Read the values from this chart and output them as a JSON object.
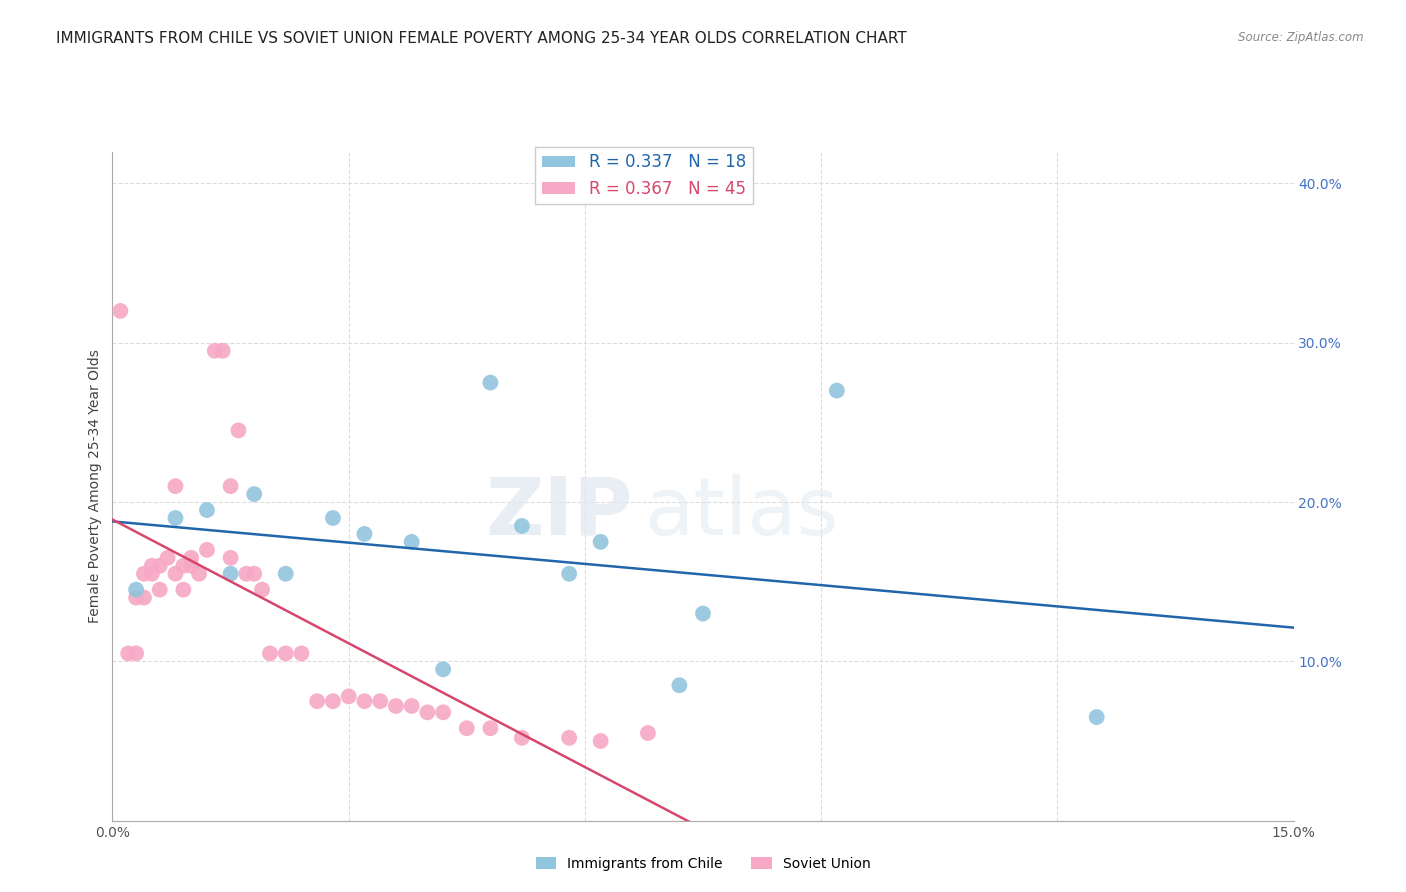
{
  "title": "IMMIGRANTS FROM CHILE VS SOVIET UNION FEMALE POVERTY AMONG 25-34 YEAR OLDS CORRELATION CHART",
  "source": "Source: ZipAtlas.com",
  "ylabel": "Female Poverty Among 25-34 Year Olds",
  "xlim": [
    0.0,
    0.15
  ],
  "ylim": [
    0.0,
    0.42
  ],
  "legend_entries": [
    {
      "label": "R = 0.337   N = 18",
      "color": "#6baed6"
    },
    {
      "label": "R = 0.367   N = 45",
      "color": "#f788a8"
    }
  ],
  "bottom_legend": [
    "Immigrants from Chile",
    "Soviet Union"
  ],
  "chile_color": "#92c5de",
  "soviet_color": "#f7a8c4",
  "chile_line_color": "#2166ac",
  "soviet_line_color": "#d6476b",
  "chile_scatter_x": [
    0.003,
    0.008,
    0.012,
    0.015,
    0.018,
    0.022,
    0.028,
    0.032,
    0.038,
    0.042,
    0.048,
    0.052,
    0.058,
    0.062,
    0.072,
    0.092,
    0.125,
    0.075
  ],
  "chile_scatter_y": [
    0.145,
    0.19,
    0.195,
    0.155,
    0.205,
    0.155,
    0.19,
    0.18,
    0.175,
    0.095,
    0.275,
    0.185,
    0.155,
    0.175,
    0.085,
    0.27,
    0.065,
    0.13
  ],
  "soviet_scatter_x": [
    0.001,
    0.002,
    0.003,
    0.003,
    0.004,
    0.004,
    0.005,
    0.005,
    0.006,
    0.006,
    0.007,
    0.008,
    0.008,
    0.009,
    0.009,
    0.01,
    0.01,
    0.011,
    0.012,
    0.013,
    0.014,
    0.015,
    0.015,
    0.016,
    0.017,
    0.018,
    0.019,
    0.02,
    0.022,
    0.024,
    0.026,
    0.028,
    0.03,
    0.032,
    0.034,
    0.036,
    0.038,
    0.04,
    0.042,
    0.045,
    0.048,
    0.052,
    0.058,
    0.062,
    0.068
  ],
  "soviet_scatter_y": [
    0.32,
    0.105,
    0.105,
    0.14,
    0.155,
    0.14,
    0.16,
    0.155,
    0.16,
    0.145,
    0.165,
    0.21,
    0.155,
    0.16,
    0.145,
    0.16,
    0.165,
    0.155,
    0.17,
    0.295,
    0.295,
    0.21,
    0.165,
    0.245,
    0.155,
    0.155,
    0.145,
    0.105,
    0.105,
    0.105,
    0.075,
    0.075,
    0.078,
    0.075,
    0.075,
    0.072,
    0.072,
    0.068,
    0.068,
    0.058,
    0.058,
    0.052,
    0.052,
    0.05,
    0.055
  ],
  "background_color": "#ffffff",
  "grid_color": "#dddddd",
  "title_fontsize": 11,
  "axis_fontsize": 10,
  "tick_fontsize": 10
}
